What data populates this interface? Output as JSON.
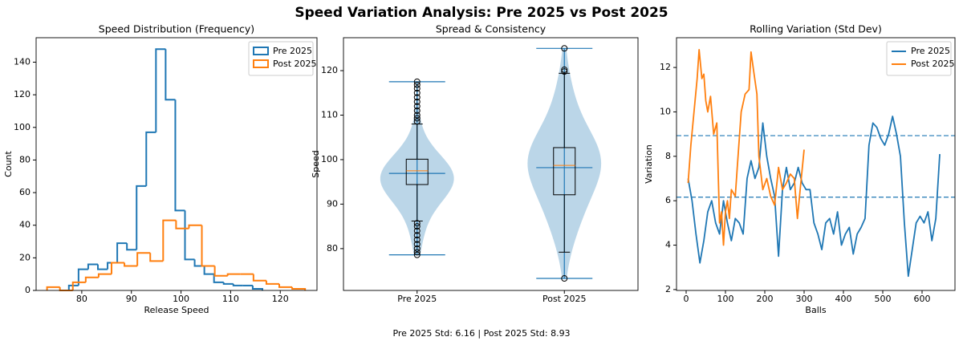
{
  "title": "Speed Variation Analysis: Pre 2025 vs Post 2025",
  "footer": "Pre 2025 Std: 6.16 | Post 2025 Std: 8.93",
  "chart_data": [
    {
      "type": "histogram",
      "title": "Speed Distribution (Frequency)",
      "x_label": "Release Speed",
      "y_label": "Count",
      "xlim": [
        70.8,
        127.4
      ],
      "ylim": [
        0,
        155
      ],
      "xticks": [
        80,
        90,
        100,
        110,
        120
      ],
      "yticks": [
        0,
        20,
        40,
        60,
        80,
        100,
        120,
        140
      ],
      "legend": "upper right",
      "series": [
        {
          "name": "Pre 2025",
          "color": "#1f77b4",
          "bins": [
            77.4,
            79.35,
            81.3,
            83.25,
            85.2,
            87.15,
            89.1,
            91.05,
            93.0,
            94.95,
            96.9,
            98.85,
            100.8,
            102.75,
            104.7,
            106.65,
            108.6,
            110.55,
            112.5,
            114.45,
            116.4
          ],
          "values": [
            3,
            13,
            16,
            13,
            17,
            29,
            25,
            64,
            97,
            148,
            117,
            49,
            19,
            15,
            10,
            5,
            4,
            3,
            3,
            1
          ]
        },
        {
          "name": "Post 2025",
          "color": "#ff7f0e",
          "bins": [
            73.0,
            75.6,
            78.2,
            80.8,
            83.4,
            86.0,
            88.6,
            91.2,
            93.8,
            96.4,
            99.0,
            101.6,
            104.2,
            106.8,
            109.4,
            112.0,
            114.6,
            117.2,
            119.8,
            122.4,
            125.0
          ],
          "values": [
            2,
            0,
            5,
            8,
            10,
            17,
            15,
            23,
            18,
            43,
            38,
            40,
            15,
            9,
            10,
            10,
            6,
            4,
            2,
            1
          ]
        }
      ]
    },
    {
      "type": "violin",
      "title": "Spread & Consistency",
      "y_label": "Speed",
      "ylim": [
        70.6,
        127.4
      ],
      "yticks": [
        80,
        90,
        100,
        110,
        120
      ],
      "categories": [
        "Pre 2025",
        "Post 2025"
      ],
      "violin_color": "#1f77b4",
      "median_color": "#ff7f0e",
      "violins": [
        {
          "min": 78.6,
          "max": 117.5,
          "median": 96.9
        },
        {
          "min": 73.3,
          "max": 125.0,
          "median": 98.2
        }
      ],
      "boxes": [
        {
          "whislo": 86.2,
          "q1": 94.4,
          "med": 97.5,
          "q3": 100.1,
          "whishi": 108.0,
          "outliers": [
            78.6,
            79.2,
            80.0,
            81.0,
            82.0,
            83.0,
            84.0,
            85.0,
            85.7,
            108.6,
            109.3,
            110.0,
            111.0,
            112.0,
            113.0,
            114.0,
            115.0,
            116.0,
            116.8,
            117.5
          ]
        },
        {
          "whislo": 79.2,
          "q1": 92.1,
          "med": 98.7,
          "q3": 102.7,
          "whishi": 119.4,
          "outliers": [
            73.3,
            119.8,
            120.2,
            125.0
          ]
        }
      ]
    },
    {
      "type": "line",
      "title": "Rolling Variation (Std Dev)",
      "x_label": "Balls",
      "y_label": "Variation",
      "xlim": [
        -24.5,
        683.7
      ],
      "ylim": [
        1.96,
        13.34
      ],
      "xticks": [
        0,
        100,
        200,
        300,
        400,
        500,
        600
      ],
      "yticks": [
        2,
        4,
        6,
        8,
        10,
        12
      ],
      "legend": "upper right",
      "hlines": [
        8.93,
        6.16
      ],
      "hline_color": "#1f77b4",
      "series": [
        {
          "name": "Pre 2025",
          "color": "#1f77b4",
          "x": [
            5,
            15,
            25,
            35,
            45,
            55,
            65,
            75,
            85,
            95,
            105,
            115,
            125,
            135,
            145,
            155,
            165,
            175,
            185,
            195,
            205,
            215,
            225,
            235,
            245,
            255,
            265,
            275,
            285,
            295,
            305,
            315,
            325,
            335,
            345,
            355,
            365,
            375,
            385,
            395,
            405,
            415,
            425,
            435,
            445,
            455,
            465,
            475,
            485,
            495,
            505,
            515,
            525,
            535,
            545,
            555,
            565,
            575,
            585,
            595,
            605,
            615,
            625,
            635,
            645
          ],
          "values": [
            7.0,
            6.0,
            4.5,
            3.2,
            4.2,
            5.5,
            6.0,
            5.0,
            4.5,
            6.0,
            5.0,
            4.2,
            5.2,
            5.0,
            4.5,
            7.0,
            7.8,
            7.0,
            7.5,
            9.5,
            8.0,
            7.0,
            6.2,
            3.5,
            6.5,
            7.5,
            6.5,
            6.8,
            7.5,
            6.8,
            6.5,
            6.5,
            5.0,
            4.5,
            3.8,
            5.0,
            5.2,
            4.5,
            5.5,
            4.0,
            4.5,
            4.8,
            3.6,
            4.5,
            4.8,
            5.2,
            8.5,
            9.5,
            9.3,
            8.8,
            8.5,
            9.0,
            9.8,
            9.0,
            8.0,
            5.0,
            2.6,
            3.8,
            5.0,
            5.3,
            5.0,
            5.5,
            4.2,
            5.2,
            8.1
          ]
        },
        {
          "name": "Post 2025",
          "color": "#ff7f0e",
          "x": [
            5,
            12,
            20,
            28,
            33,
            40,
            45,
            50,
            55,
            62,
            70,
            78,
            85,
            90,
            95,
            100,
            105,
            110,
            115,
            125,
            130,
            140,
            150,
            160,
            165,
            172,
            180,
            185,
            195,
            205,
            215,
            225,
            235,
            245,
            255,
            265,
            275,
            283,
            290,
            300
          ],
          "values": [
            6.8,
            8.5,
            10.0,
            11.5,
            12.8,
            11.5,
            11.7,
            10.5,
            10.0,
            10.7,
            9.0,
            9.5,
            5.0,
            5.5,
            4.0,
            5.5,
            6.0,
            5.2,
            6.5,
            6.2,
            7.5,
            10.0,
            10.8,
            11.0,
            12.7,
            11.8,
            10.8,
            8.0,
            6.5,
            7.0,
            6.2,
            5.8,
            7.5,
            6.5,
            6.8,
            7.2,
            7.0,
            5.2,
            6.5,
            8.3
          ]
        }
      ]
    }
  ]
}
